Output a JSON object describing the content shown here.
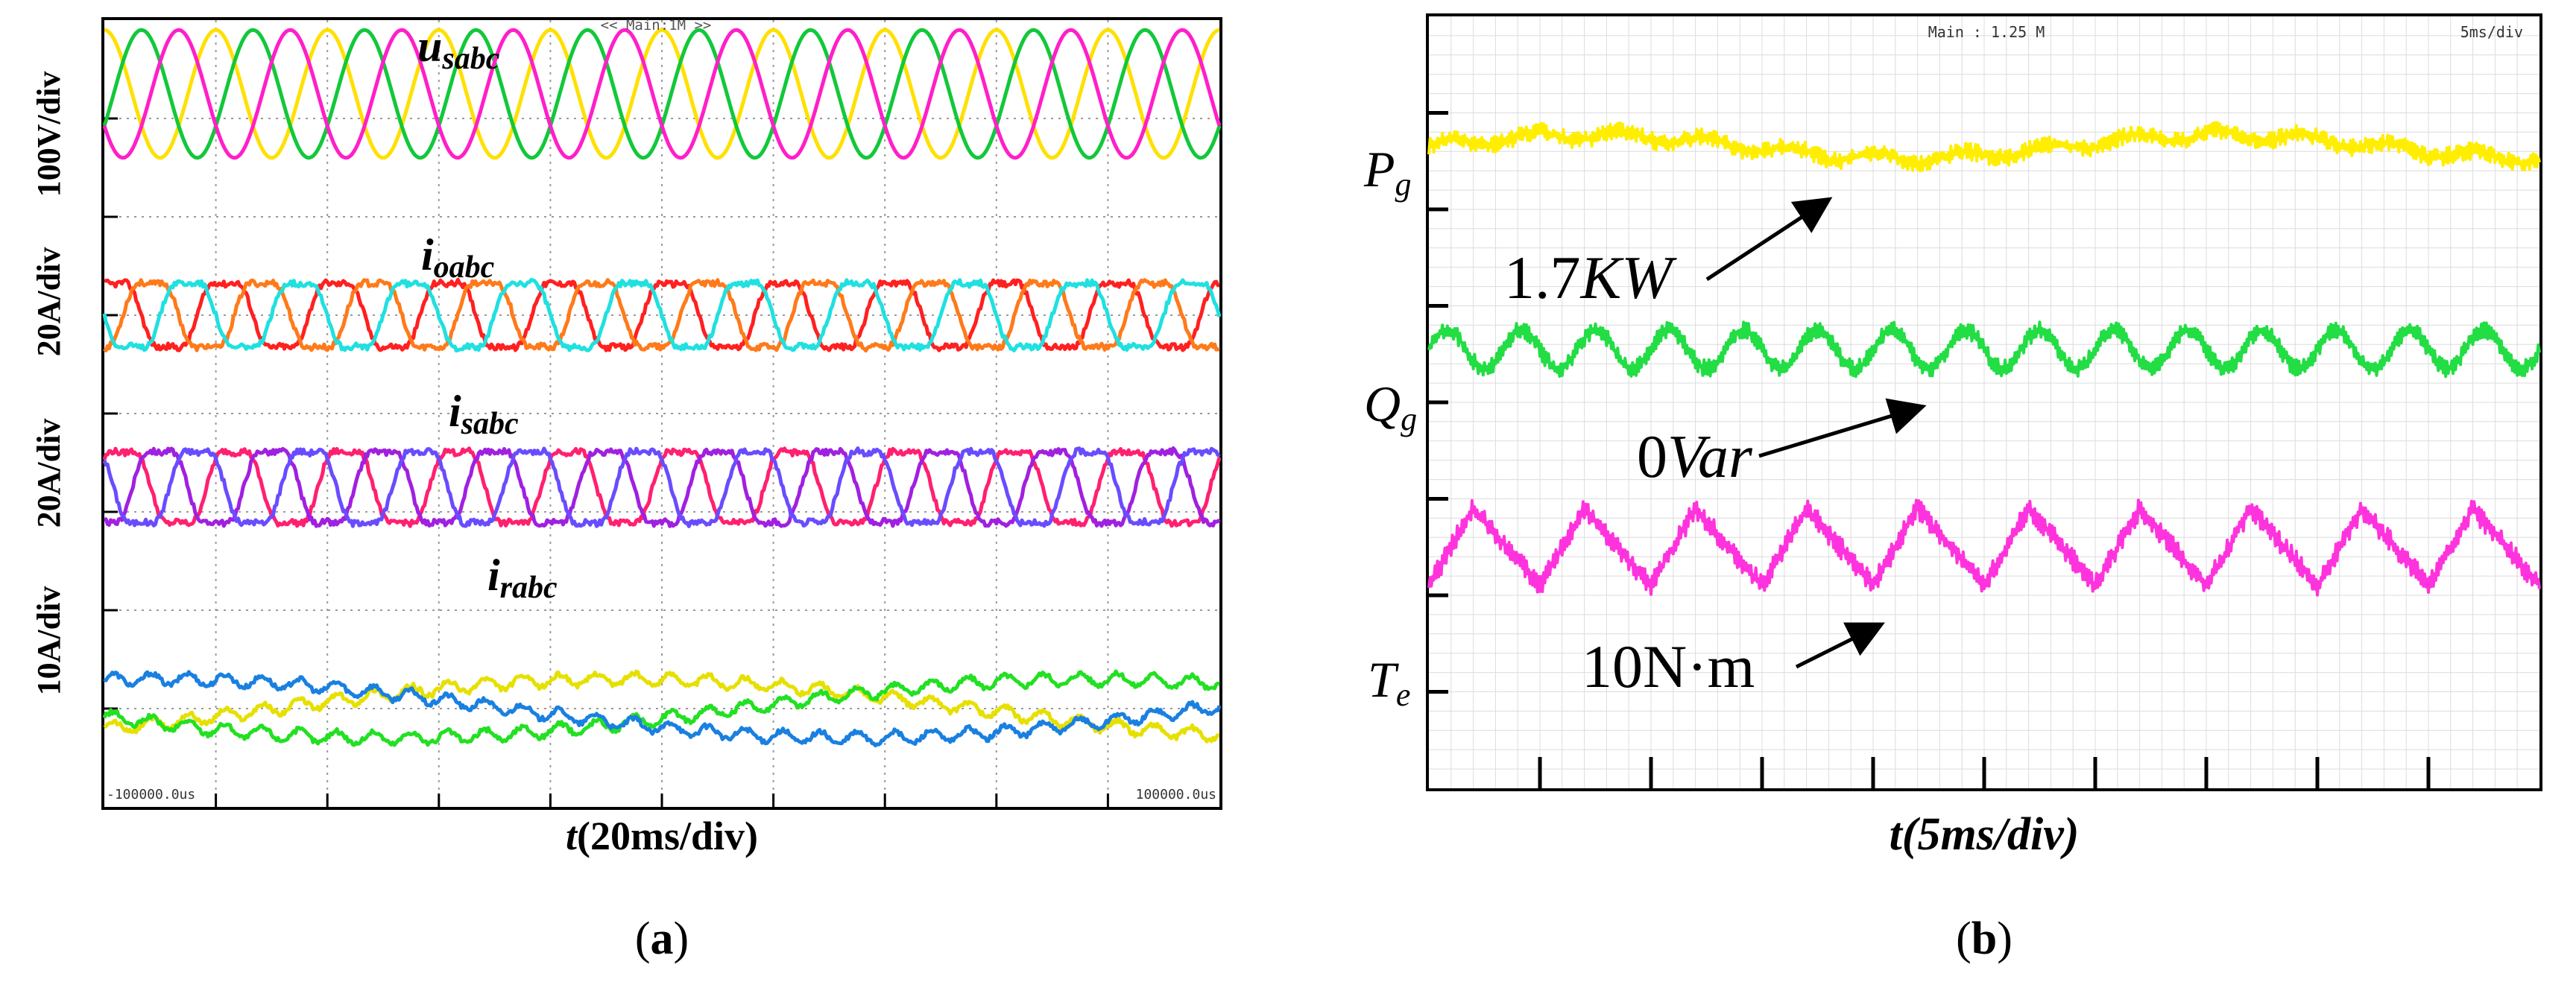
{
  "chart_data": [
    {
      "type": "line",
      "panel_label": "(a)",
      "header": "<< Main:1M >>",
      "xlabel": "t(20ms/div)",
      "x_start_label": "-100000.0us",
      "x_end_label": "100000.0us",
      "xlim_ms": [
        -100,
        100
      ],
      "x_divisions": 10,
      "y_divisions": 8,
      "groups": [
        {
          "name": "usabc",
          "label_main": "u",
          "label_sub": "sabc",
          "scale": "100V/div",
          "series": [
            {
              "name": "phase-a",
              "color": "#ffe000",
              "freq_hz": 50,
              "amplitude_div": 0.65,
              "phase_deg": 90
            },
            {
              "name": "phase-b",
              "color": "#12c83a",
              "freq_hz": 50,
              "amplitude_div": 0.65,
              "phase_deg": -30
            },
            {
              "name": "phase-c",
              "color": "#ff1fc8",
              "freq_hz": 50,
              "amplitude_div": 0.65,
              "phase_deg": 210
            }
          ]
        },
        {
          "name": "ioabc",
          "label_main": "i",
          "label_sub": "oabc",
          "scale": "20A/div",
          "series": [
            {
              "name": "phase-a",
              "color": "#ff2020",
              "freq_hz": 50,
              "amplitude_div": 0.45,
              "phase_deg": 60
            },
            {
              "name": "phase-b",
              "color": "#ff7a1a",
              "freq_hz": 50,
              "amplitude_div": 0.45,
              "phase_deg": -60
            },
            {
              "name": "phase-c",
              "color": "#20e0e0",
              "freq_hz": 50,
              "amplitude_div": 0.45,
              "phase_deg": 180
            }
          ]
        },
        {
          "name": "isabc",
          "label_main": "i",
          "label_sub": "sabc",
          "scale": "20A/div",
          "series": [
            {
              "name": "phase-a",
              "color": "#ff2070",
              "freq_hz": 50,
              "amplitude_div": 0.5,
              "phase_deg": 30
            },
            {
              "name": "phase-b",
              "color": "#a020e0",
              "freq_hz": 50,
              "amplitude_div": 0.5,
              "phase_deg": -90
            },
            {
              "name": "phase-c",
              "color": "#6a4cff",
              "freq_hz": 50,
              "amplitude_div": 0.5,
              "phase_deg": 150
            }
          ]
        },
        {
          "name": "irabc",
          "label_main": "i",
          "label_sub": "rabc",
          "scale": "10A/div",
          "series": [
            {
              "name": "phase-a",
              "color": "#e6e000",
              "freq_hz": 4,
              "amplitude_div": 0.3,
              "phase_deg": 100
            },
            {
              "name": "phase-b",
              "color": "#22e022",
              "freq_hz": 4,
              "amplitude_div": 0.3,
              "phase_deg": -20
            },
            {
              "name": "phase-c",
              "color": "#1a80e0",
              "freq_hz": 4,
              "amplitude_div": 0.3,
              "phase_deg": 220
            }
          ]
        }
      ]
    },
    {
      "type": "line",
      "panel_label": "(b)",
      "header_left": "Main : 1.25 M",
      "header_right": "5ms/div",
      "xlabel": "t(5ms/div)",
      "xlim_ms": [
        0,
        50
      ],
      "x_divisions": 10,
      "y_divisions": 8,
      "series": [
        {
          "name": "Pg",
          "label_main": "P",
          "label_sub": "g",
          "color": "#ffee00",
          "annotation": "1.7KW",
          "annotation_main": "1.7",
          "annotation_unit": "KW",
          "level_div": 1.35,
          "ripple_freq_hz": 250,
          "ripple_div": 0.12
        },
        {
          "name": "Qg",
          "label_main": "Q",
          "label_sub": "g",
          "color": "#22dd44",
          "annotation": "0Var",
          "annotation_main": "0",
          "annotation_unit": "Var",
          "level_div": 3.45,
          "ripple_freq_hz": 300,
          "ripple_div": 0.2
        },
        {
          "name": "Te",
          "label_main": "T",
          "label_sub": "e",
          "color": "#ff33dd",
          "annotation": "10N·m",
          "annotation_main": "10N·m",
          "annotation_unit": "",
          "level_div": 5.5,
          "ripple_freq_hz": 200,
          "ripple_div": 0.4
        }
      ]
    }
  ]
}
